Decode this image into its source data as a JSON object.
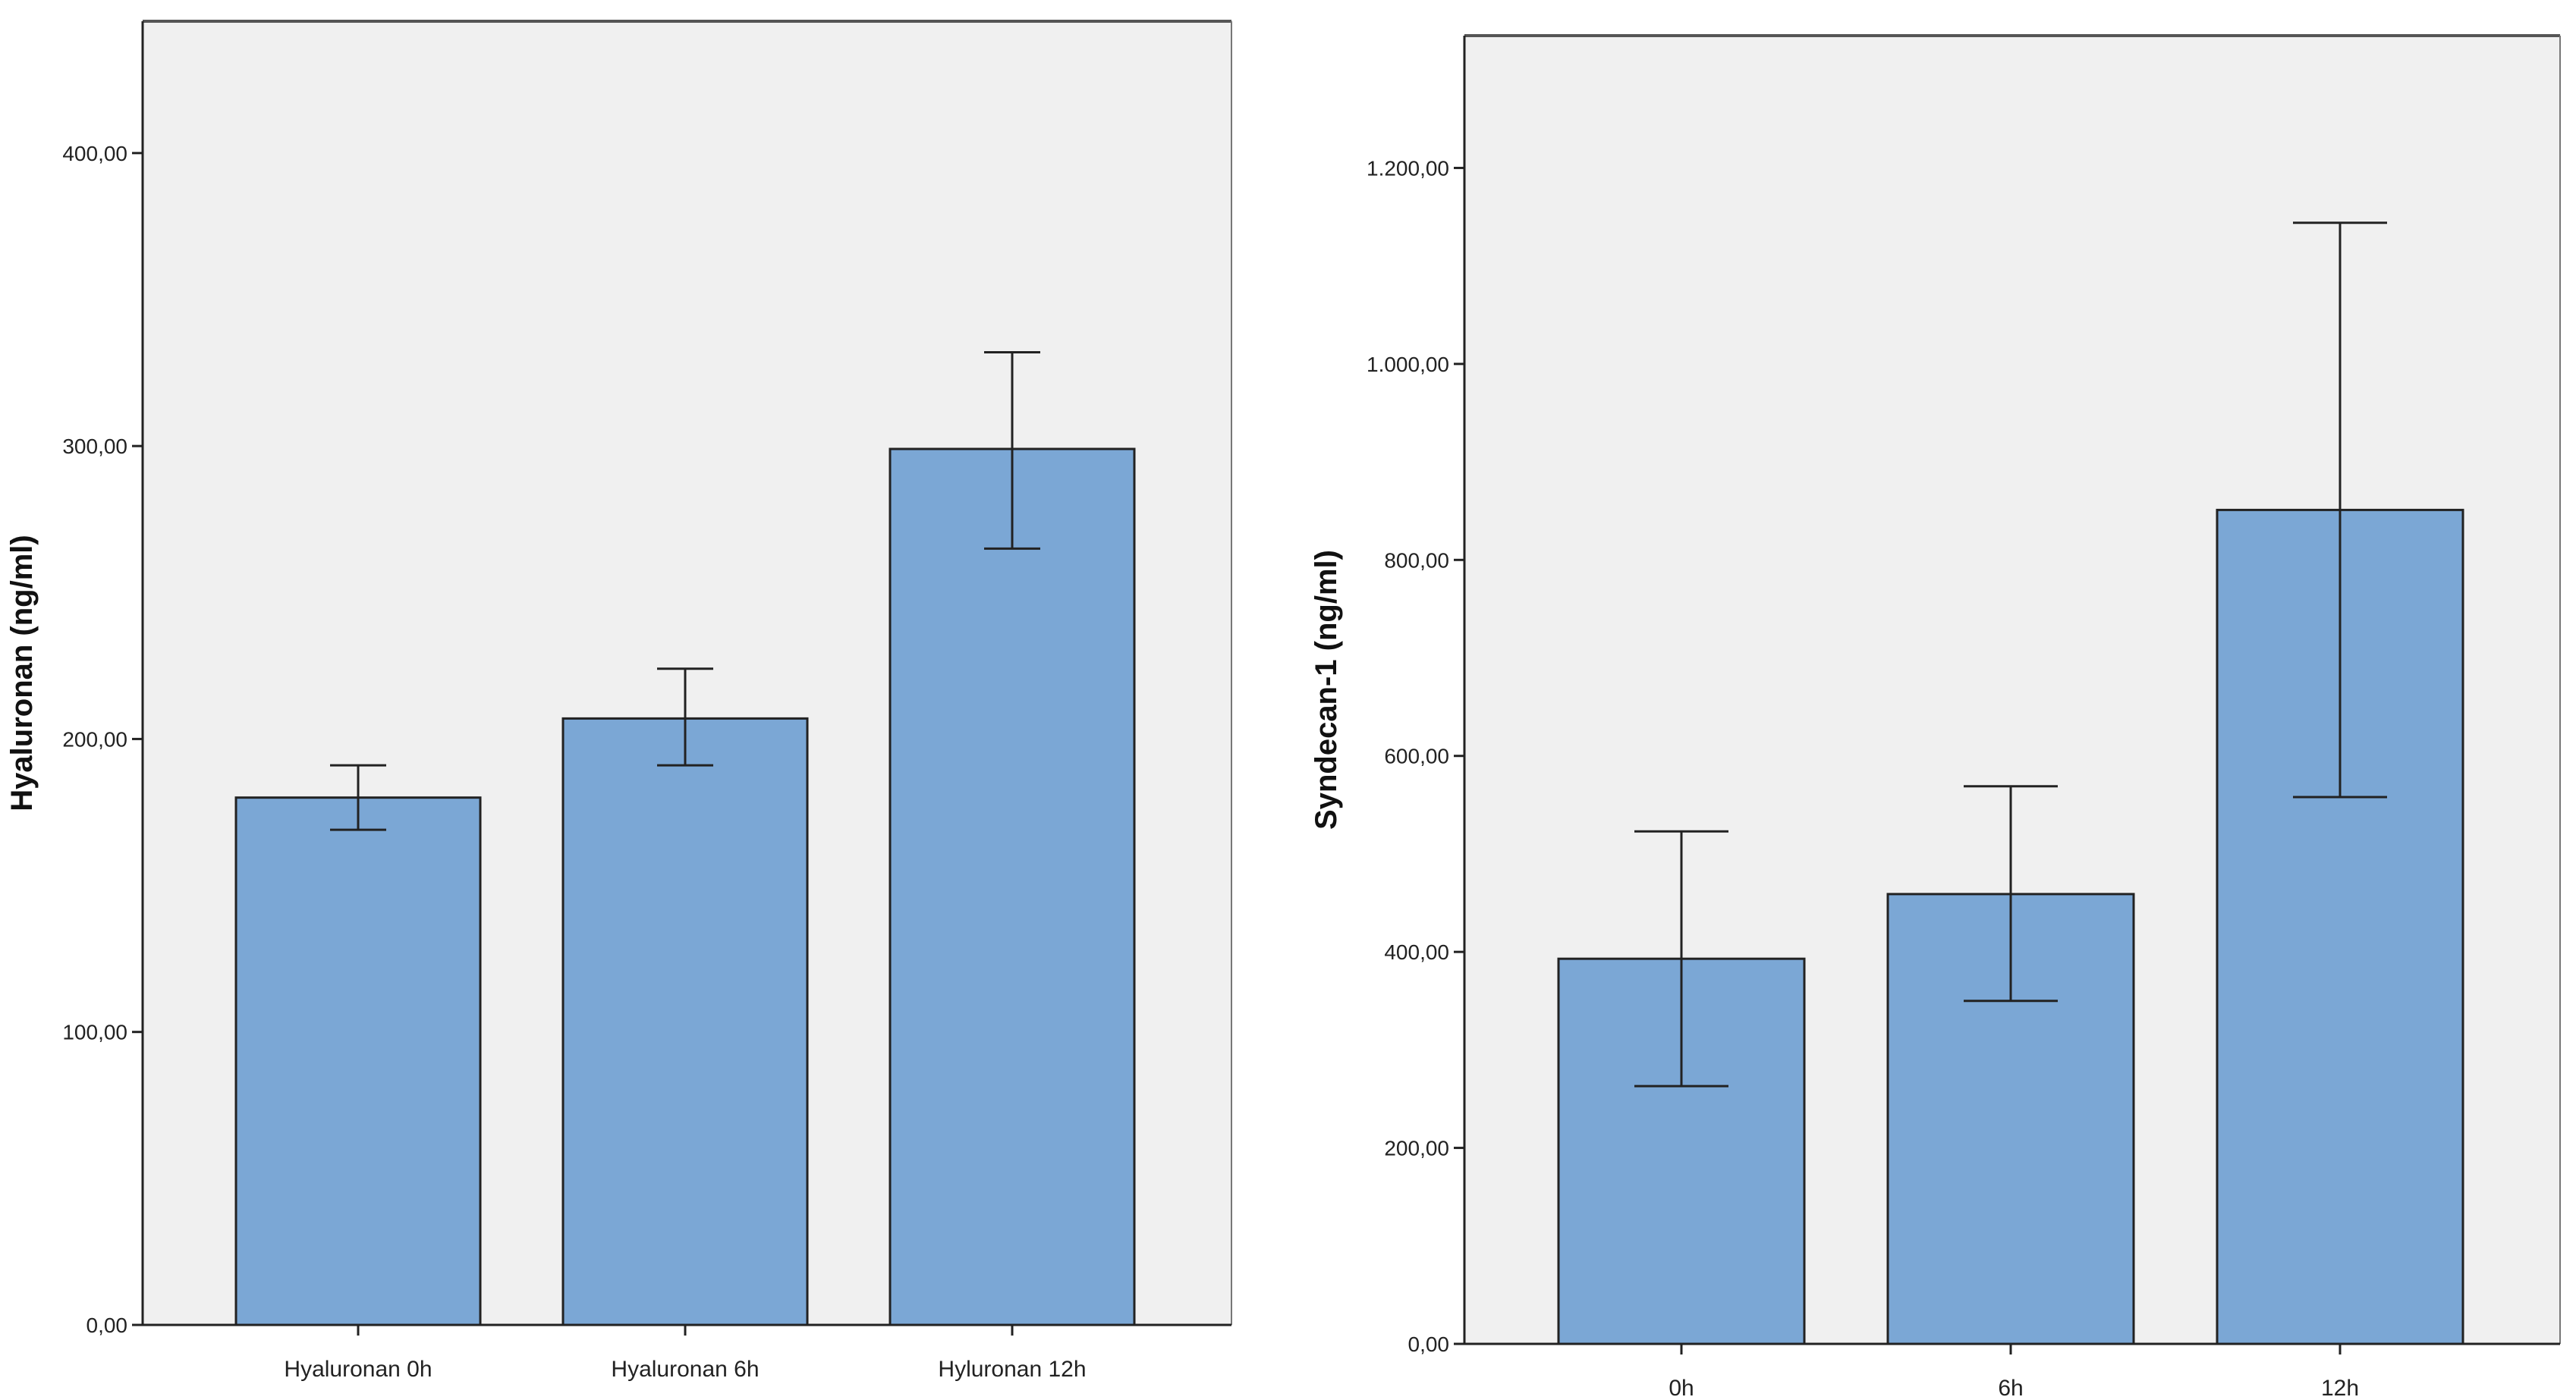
{
  "colors": {
    "plot_bg": "#f0f0f0",
    "bar_fill": "#7ba7d5",
    "bar_stroke": "#222222",
    "axis": "#222222",
    "error_bar": "#222222"
  },
  "chart_data": [
    {
      "type": "bar",
      "title": "",
      "xlabel": "",
      "ylabel": "Hyaluronan (ng/ml)",
      "ylim": [
        0,
        445
      ],
      "yticks": [
        0,
        100,
        200,
        300,
        400
      ],
      "ytick_labels": [
        "0,00",
        "100,00",
        "200,00",
        "300,00",
        "400,00"
      ],
      "categories": [
        "Hyaluronan 0h",
        "Hyaluronan 6h",
        "Hyluronan 12h"
      ],
      "values": [
        180,
        207,
        299
      ],
      "error_low": [
        169,
        191,
        265
      ],
      "error_high": [
        191,
        224,
        332
      ],
      "grid": false
    },
    {
      "type": "bar",
      "title": "",
      "xlabel": "",
      "ylabel": "Syndecan-1 (ng/ml)",
      "ylim": [
        0,
        1335
      ],
      "yticks": [
        0,
        200,
        400,
        600,
        800,
        1000,
        1200
      ],
      "ytick_labels": [
        "0,00",
        "200,00",
        "400,00",
        "600,00",
        "800,00",
        "1.000,00",
        "1.200,00"
      ],
      "categories": [
        "0h",
        "6h",
        "12h"
      ],
      "values": [
        393,
        459,
        851
      ],
      "error_low": [
        263,
        350,
        558
      ],
      "error_high": [
        523,
        569,
        1144
      ],
      "grid": false
    }
  ]
}
